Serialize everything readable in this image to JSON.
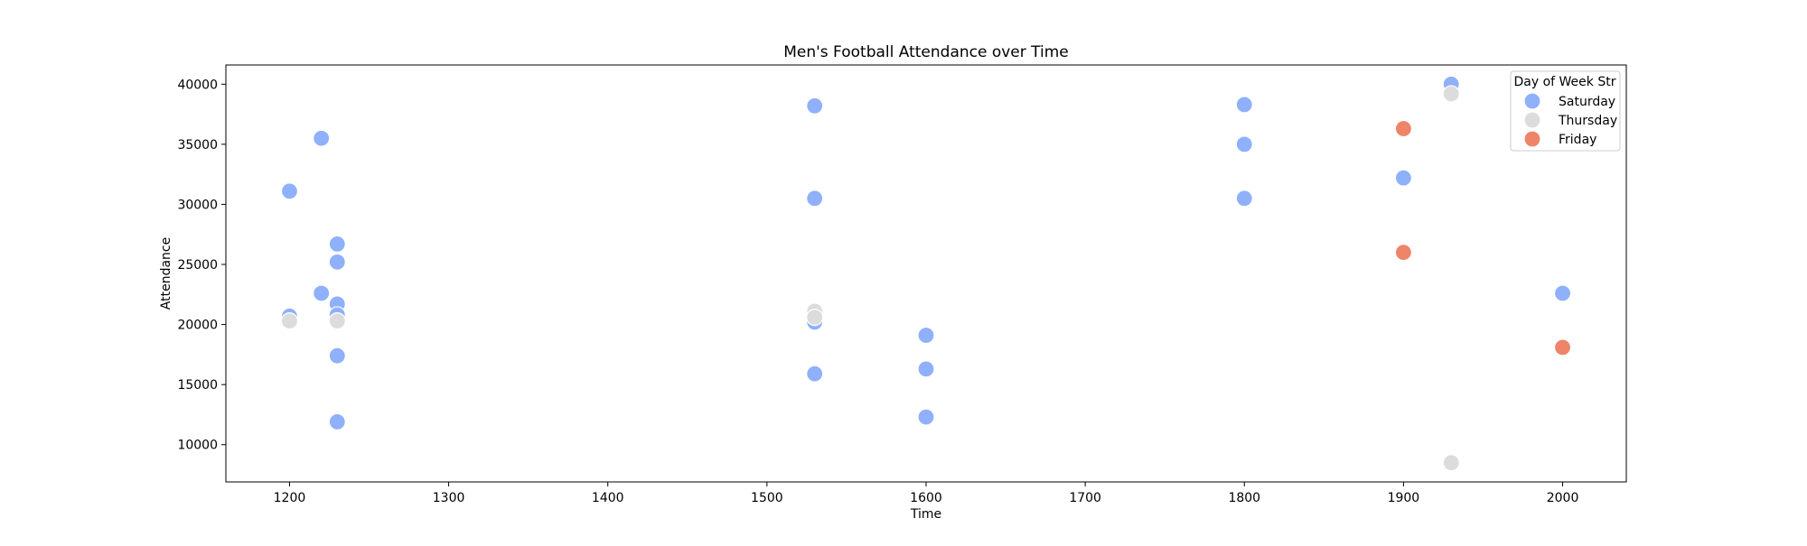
{
  "chart_data": {
    "type": "scatter",
    "title": "Men's Football Attendance over Time",
    "xlabel": "Time",
    "ylabel": "Attendance",
    "xlim": [
      1160,
      2040
    ],
    "ylim": [
      6900,
      41600
    ],
    "xticks": [
      1200,
      1300,
      1400,
      1500,
      1600,
      1700,
      1800,
      1900,
      2000
    ],
    "yticks": [
      10000,
      15000,
      20000,
      25000,
      30000,
      35000,
      40000
    ],
    "grid": false,
    "legend": {
      "title": "Day of Week Str",
      "placement": "top-right"
    },
    "series": [
      {
        "name": "Saturday",
        "color": "#8fb0fb",
        "points": [
          {
            "x": 1200,
            "y": 31100
          },
          {
            "x": 1200,
            "y": 20700
          },
          {
            "x": 1220,
            "y": 35500
          },
          {
            "x": 1220,
            "y": 22600
          },
          {
            "x": 1230,
            "y": 26700
          },
          {
            "x": 1230,
            "y": 25200
          },
          {
            "x": 1230,
            "y": 21700
          },
          {
            "x": 1230,
            "y": 20800
          },
          {
            "x": 1230,
            "y": 17400
          },
          {
            "x": 1230,
            "y": 11900
          },
          {
            "x": 1530,
            "y": 38200
          },
          {
            "x": 1530,
            "y": 30500
          },
          {
            "x": 1530,
            "y": 20200
          },
          {
            "x": 1530,
            "y": 15900
          },
          {
            "x": 1600,
            "y": 19100
          },
          {
            "x": 1600,
            "y": 16300
          },
          {
            "x": 1600,
            "y": 12300
          },
          {
            "x": 1800,
            "y": 38300
          },
          {
            "x": 1800,
            "y": 35000
          },
          {
            "x": 1800,
            "y": 30500
          },
          {
            "x": 1900,
            "y": 32200
          },
          {
            "x": 1930,
            "y": 40000
          },
          {
            "x": 2000,
            "y": 22600
          }
        ]
      },
      {
        "name": "Thursday",
        "color": "#dddcdc",
        "points": [
          {
            "x": 1200,
            "y": 20300
          },
          {
            "x": 1230,
            "y": 20300
          },
          {
            "x": 1530,
            "y": 21100
          },
          {
            "x": 1530,
            "y": 20600
          },
          {
            "x": 1930,
            "y": 39200
          },
          {
            "x": 1930,
            "y": 8500
          }
        ]
      },
      {
        "name": "Friday",
        "color": "#ee8468",
        "points": [
          {
            "x": 1900,
            "y": 36300
          },
          {
            "x": 1900,
            "y": 26000
          },
          {
            "x": 2000,
            "y": 18100
          }
        ]
      }
    ]
  }
}
